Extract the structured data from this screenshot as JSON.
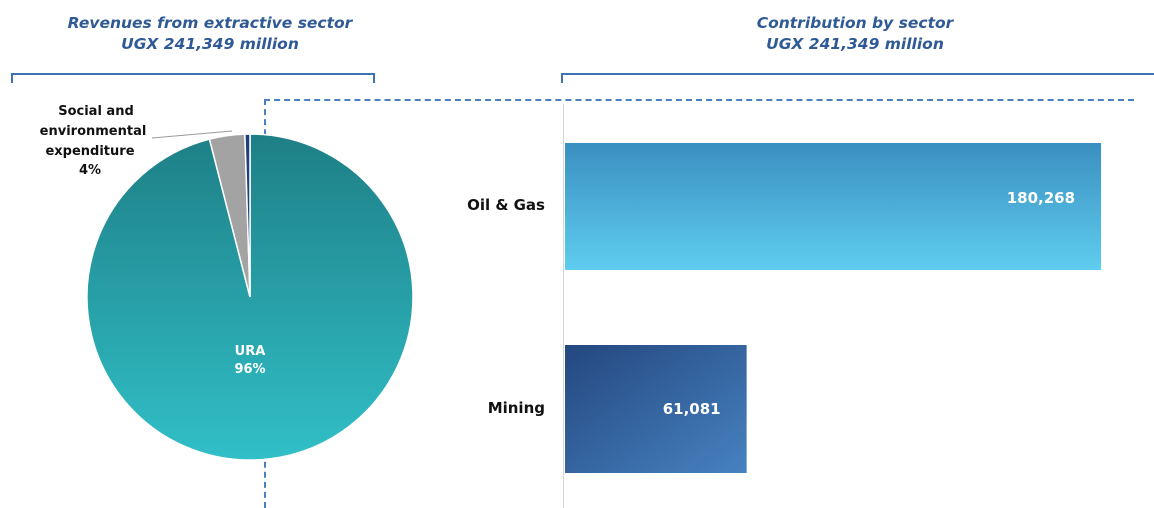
{
  "left_title": {
    "line1": "Revenues from extractive sector",
    "line2": "UGX 241,349 million"
  },
  "right_title": {
    "line1": "Contribution by sector",
    "line2": "UGX 241,349 million"
  },
  "chart_data": [
    {
      "type": "pie",
      "title": "Revenues from extractive sector",
      "subtitle": "UGX 241,349 million",
      "slices": [
        {
          "label": "URA",
          "label_line1": "URA",
          "value": 96,
          "pct_label": "96%",
          "color": "#2aa9b1"
        },
        {
          "label": "Social and environmental expenditure",
          "label_line1": "Social and",
          "label_line2": "environmental",
          "label_line3": "expenditure",
          "value": 3.5,
          "pct_label": "4%",
          "color": "#a3a3a3"
        },
        {
          "label": "",
          "value": 0.5,
          "color": "#1f3f7a"
        }
      ]
    },
    {
      "type": "bar",
      "orientation": "horizontal",
      "title": "Contribution by sector",
      "subtitle": "UGX 241,349 million",
      "categories": [
        "Oil & Gas",
        "Mining"
      ],
      "values": [
        180268,
        61081
      ],
      "value_labels": [
        "180,268",
        "61,081"
      ],
      "colors": [
        "#45b3de",
        "#2f5c99"
      ],
      "xlim": [
        0,
        190000
      ]
    }
  ]
}
